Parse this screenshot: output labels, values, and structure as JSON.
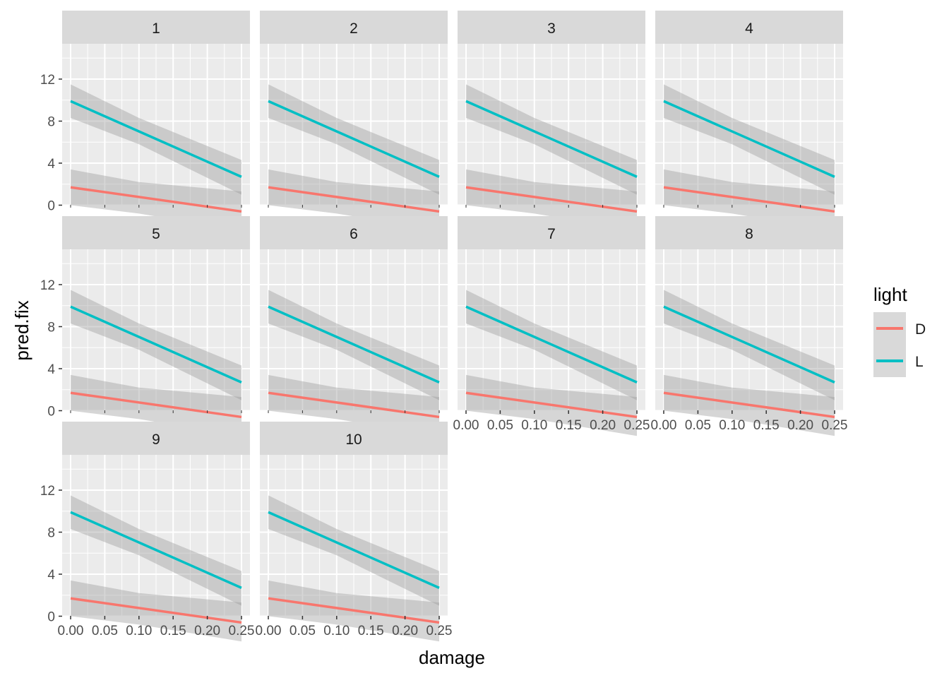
{
  "chart_data": {
    "type": "line",
    "facet_by": "",
    "panels": [
      "1",
      "2",
      "3",
      "4",
      "5",
      "6",
      "7",
      "8",
      "9",
      "10"
    ],
    "xlabel": "damage",
    "ylabel": "pred.fix",
    "xlim": [
      0,
      0.25
    ],
    "ylim": [
      -3,
      15
    ],
    "x_ticks": [
      "0.00",
      "0.05",
      "0.10",
      "0.15",
      "0.20",
      "0.25"
    ],
    "y_ticks": [
      "0",
      "4",
      "8",
      "12"
    ],
    "grid": true,
    "legend": {
      "title": "light",
      "position": "right",
      "entries": [
        {
          "label": "D",
          "color": "#F8766D"
        },
        {
          "label": "L",
          "color": "#00BFC4"
        }
      ]
    },
    "series": [
      {
        "name": "D",
        "color": "#F8766D",
        "x": [
          0,
          0.25
        ],
        "y": [
          1.7,
          -0.6
        ],
        "ribbon": {
          "x": [
            0,
            0.1,
            0.25
          ],
          "upper": [
            3.4,
            2.2,
            1.3
          ],
          "lower": [
            0.0,
            -0.8,
            -2.4
          ]
        }
      },
      {
        "name": "L",
        "color": "#00BFC4",
        "x": [
          0,
          0.25
        ],
        "y": [
          9.9,
          2.7
        ],
        "ribbon": {
          "x": [
            0,
            0.1,
            0.25
          ],
          "upper": [
            11.5,
            8.3,
            4.3
          ],
          "lower": [
            8.3,
            5.8,
            1.0
          ]
        }
      }
    ]
  }
}
